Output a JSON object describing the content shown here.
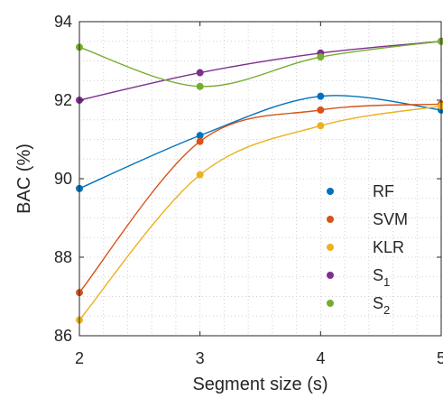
{
  "chart_data": {
    "type": "line",
    "title": "",
    "xlabel": "Segment size (s)",
    "ylabel": "BAC (%)",
    "x": [
      2,
      3,
      4,
      5
    ],
    "xlim": [
      2,
      5
    ],
    "ylim": [
      86,
      94
    ],
    "xticks": [
      2,
      3,
      4,
      5
    ],
    "yticks": [
      86,
      88,
      90,
      92,
      94
    ],
    "xtick_labels": [
      "2",
      "3",
      "4",
      "5"
    ],
    "ytick_labels": [
      "86",
      "88",
      "90",
      "92",
      "94"
    ],
    "grid": "dotted major and minor",
    "legend_position": "lower-right inside",
    "series": [
      {
        "name": "RF",
        "label_main": "RF",
        "label_sub": "",
        "color": "#0072BD",
        "values": [
          89.75,
          91.1,
          92.1,
          91.75
        ]
      },
      {
        "name": "SVM",
        "label_main": "SVM",
        "label_sub": "",
        "color": "#D95319",
        "values": [
          87.1,
          90.95,
          91.75,
          91.9
        ]
      },
      {
        "name": "KLR",
        "label_main": "KLR",
        "label_sub": "",
        "color": "#EDB120",
        "values": [
          86.4,
          90.1,
          91.35,
          91.85
        ]
      },
      {
        "name": "S1",
        "label_main": "S",
        "label_sub": "1",
        "color": "#7E2F8E",
        "values": [
          92.0,
          92.7,
          93.2,
          93.5
        ]
      },
      {
        "name": "S2",
        "label_main": "S",
        "label_sub": "2",
        "color": "#77AC30",
        "values": [
          93.35,
          92.35,
          93.1,
          93.5
        ]
      }
    ]
  }
}
